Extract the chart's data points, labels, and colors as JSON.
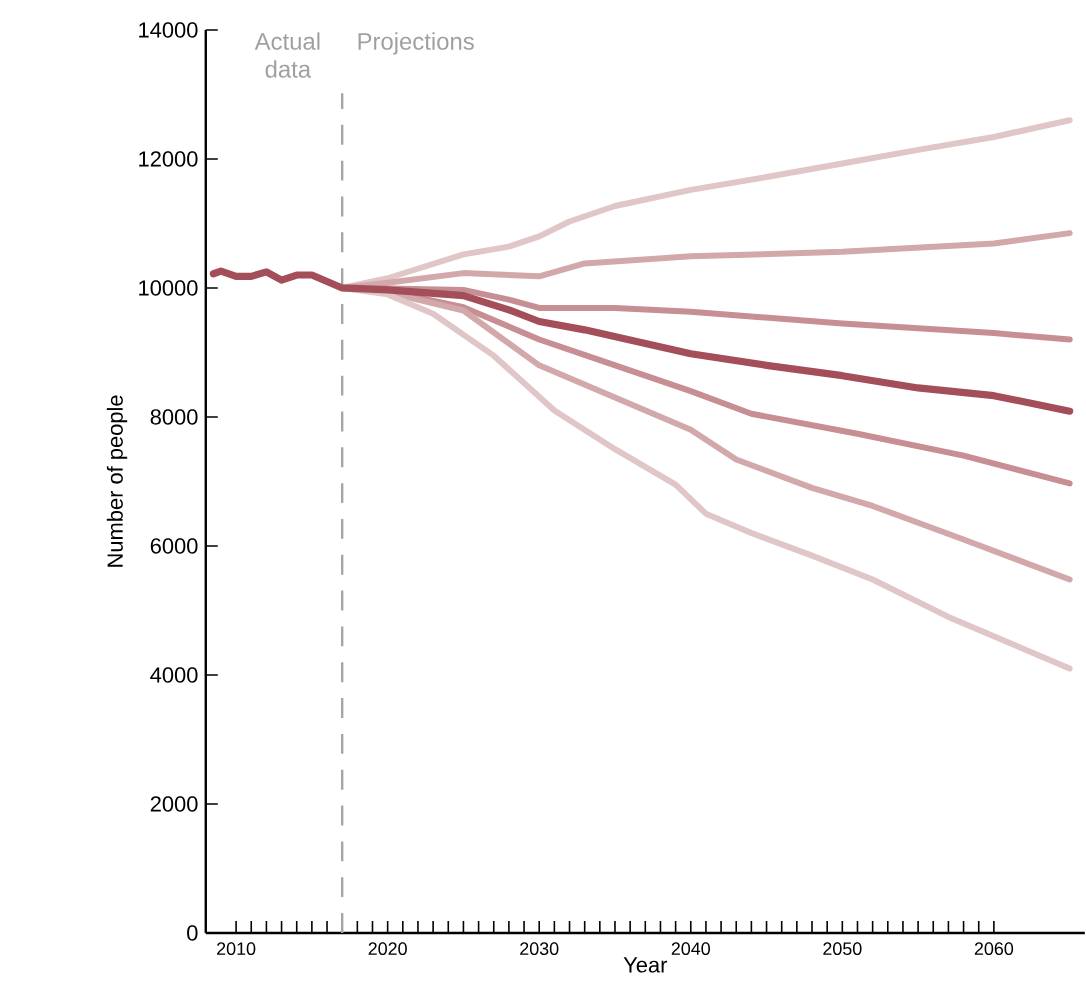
{
  "chart_data": {
    "type": "line",
    "xlabel": "Year",
    "ylabel": "Number of people",
    "xlim": [
      2008,
      2066
    ],
    "ylim": [
      0,
      14000
    ],
    "xticks": [
      2010,
      2020,
      2030,
      2040,
      2050,
      2060
    ],
    "yticks": [
      0,
      2000,
      4000,
      6000,
      8000,
      10000,
      12000,
      14000
    ],
    "line_style": "solid",
    "series": [
      {
        "color": "#e0c6c6",
        "x": [
          2017,
          2020,
          2025,
          2028,
          2030,
          2032,
          2035,
          2040,
          2045,
          2050,
          2055,
          2060,
          2065
        ],
        "values": [
          10000,
          10150,
          10520,
          10640,
          10800,
          11030,
          11270,
          11520,
          11720,
          11930,
          12140,
          12340,
          12600
        ]
      },
      {
        "color": "#d3a8ab",
        "x": [
          2017,
          2020,
          2025,
          2030,
          2033,
          2040,
          2050,
          2060,
          2065
        ],
        "values": [
          10000,
          10080,
          10230,
          10180,
          10380,
          10490,
          10560,
          10690,
          10850
        ]
      },
      {
        "color": "#c78e93",
        "x": [
          2017,
          2020,
          2025,
          2028,
          2030,
          2035,
          2040,
          2050,
          2060,
          2065
        ],
        "values": [
          10000,
          9990,
          9970,
          9820,
          9690,
          9690,
          9630,
          9450,
          9300,
          9200
        ]
      },
      {
        "color": "#c78e93",
        "x": [
          2017,
          2020,
          2025,
          2030,
          2034,
          2040,
          2044,
          2051,
          2058,
          2065
        ],
        "values": [
          10000,
          9950,
          9700,
          9200,
          8880,
          8400,
          8050,
          7740,
          7400,
          6970
        ]
      },
      {
        "color": "#d3a8ab",
        "x": [
          2017,
          2020,
          2025,
          2030,
          2035,
          2040,
          2043,
          2048,
          2052,
          2058,
          2065
        ],
        "values": [
          10000,
          9930,
          9650,
          8800,
          8300,
          7800,
          7340,
          6900,
          6620,
          6100,
          5480
        ]
      },
      {
        "color": "#e0c6c6",
        "x": [
          2017,
          2020,
          2023,
          2027,
          2031,
          2035,
          2039,
          2041,
          2044,
          2048,
          2052,
          2057,
          2065
        ],
        "values": [
          10000,
          9900,
          9600,
          8950,
          8100,
          7500,
          6950,
          6500,
          6200,
          5850,
          5480,
          4900,
          4100
        ]
      },
      {
        "color": "#a34e58",
        "x": [
          2008.5,
          2009,
          2010,
          2011,
          2012,
          2013,
          2014,
          2015,
          2016,
          2017,
          2020,
          2025,
          2028,
          2030,
          2033,
          2040,
          2045,
          2050,
          2055,
          2060,
          2065
        ],
        "values": [
          10220,
          10260,
          10180,
          10180,
          10250,
          10120,
          10200,
          10200,
          10100,
          10000,
          9970,
          9880,
          9660,
          9480,
          9350,
          8980,
          8800,
          8640,
          8450,
          8330,
          8090
        ]
      }
    ],
    "ref_lines": [
      {
        "axis": "x",
        "value": 2017,
        "color": "#a6a6a6",
        "line_style": "dashed"
      }
    ],
    "annotations": [
      "Actual data",
      "Projections"
    ]
  }
}
